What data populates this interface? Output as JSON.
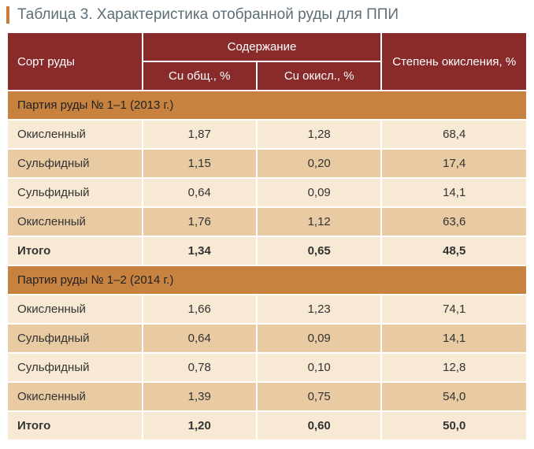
{
  "title": "Таблица 3. Характеристика отобранной руды для ППИ",
  "colors": {
    "header_bg": "#8a2b2b",
    "header_text": "#ffffff",
    "section_bg": "#c7823f",
    "row_light": "#f7e9d4",
    "row_dark": "#e8caa3",
    "title_color": "#5e6e78",
    "title_border": "#c77b3a"
  },
  "header": {
    "corner": "Сорт руды",
    "group": "Содержание",
    "sub1": "Cu общ., %",
    "sub2": "Cu окисл., %",
    "col4": "Степень окисления, %"
  },
  "sections": [
    {
      "label": "Партия руды № 1–1 (2013 г.)",
      "rows": [
        {
          "c1": "Окисленный",
          "c2": "1,87",
          "c3": "1,28",
          "c4": "68,4",
          "shade": "light",
          "total": false
        },
        {
          "c1": "Сульфидный",
          "c2": "1,15",
          "c3": "0,20",
          "c4": "17,4",
          "shade": "dark",
          "total": false
        },
        {
          "c1": "Сульфидный",
          "c2": "0,64",
          "c3": "0,09",
          "c4": "14,1",
          "shade": "light",
          "total": false
        },
        {
          "c1": "Окисленный",
          "c2": "1,76",
          "c3": "1,12",
          "c4": "63,6",
          "shade": "dark",
          "total": false
        },
        {
          "c1": "Итого",
          "c2": "1,34",
          "c3": "0,65",
          "c4": "48,5",
          "shade": "light",
          "total": true
        }
      ]
    },
    {
      "label": "Партия руды № 1–2 (2014 г.)",
      "rows": [
        {
          "c1": "Окисленный",
          "c2": "1,66",
          "c3": "1,23",
          "c4": "74,1",
          "shade": "light",
          "total": false
        },
        {
          "c1": "Сульфидный",
          "c2": "0,64",
          "c3": "0,09",
          "c4": "14,1",
          "shade": "dark",
          "total": false
        },
        {
          "c1": "Сульфидный",
          "c2": "0,78",
          "c3": "0,10",
          "c4": "12,8",
          "shade": "light",
          "total": false
        },
        {
          "c1": "Окисленный",
          "c2": "1,39",
          "c3": "0,75",
          "c4": "54,0",
          "shade": "dark",
          "total": false
        },
        {
          "c1": "Итого",
          "c2": "1,20",
          "c3": "0,60",
          "c4": "50,0",
          "shade": "light",
          "total": true
        }
      ]
    }
  ]
}
